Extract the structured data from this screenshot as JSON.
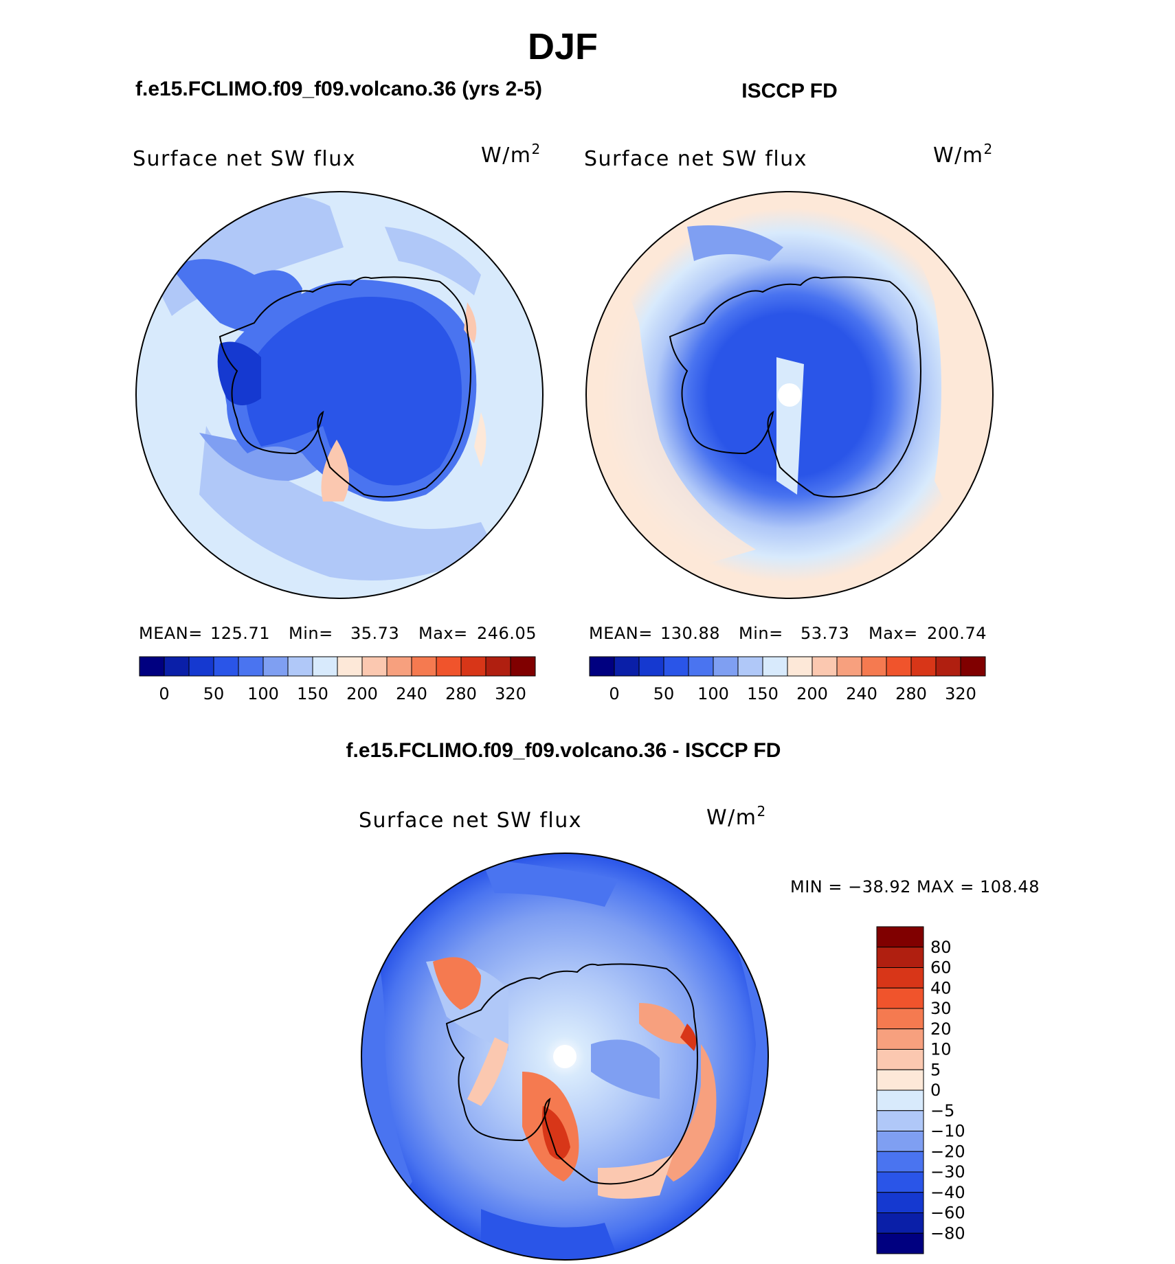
{
  "figure": {
    "title": "DJF"
  },
  "chart_data": [
    {
      "type": "heatmap",
      "projection": "south-polar-stereographic",
      "header": "f.e15.FCLIMO.f09_f09.volcano.36 (yrs 2-5)",
      "title": "Surface net SW flux",
      "units": "W/m",
      "units_sup": "2",
      "stats": {
        "mean_label": "MEAN=",
        "mean": "125.71",
        "min_label": "Min=",
        "min": "35.73",
        "max_label": "Max=",
        "max": "246.05"
      },
      "colorbar": {
        "orientation": "horizontal",
        "colors": [
          "#000080",
          "#0a1fa8",
          "#1539d0",
          "#2a55e8",
          "#4a74f0",
          "#7f9ff2",
          "#b0c8f8",
          "#d8eafc",
          "#fde8d8",
          "#fbc8b0",
          "#f7a07e",
          "#f57a50",
          "#f0542c",
          "#d83618",
          "#b01f10",
          "#800000"
        ],
        "tick_labels": [
          "0",
          "50",
          "100",
          "150",
          "200",
          "240",
          "280",
          "320"
        ]
      }
    },
    {
      "type": "heatmap",
      "projection": "south-polar-stereographic",
      "header": "ISCCP FD",
      "title": "Surface net SW flux",
      "units": "W/m",
      "units_sup": "2",
      "stats": {
        "mean_label": "MEAN=",
        "mean": "130.88",
        "min_label": "Min=",
        "min": "53.73",
        "max_label": "Max=",
        "max": "200.74"
      },
      "colorbar": {
        "orientation": "horizontal",
        "colors": [
          "#000080",
          "#0a1fa8",
          "#1539d0",
          "#2a55e8",
          "#4a74f0",
          "#7f9ff2",
          "#b0c8f8",
          "#d8eafc",
          "#fde8d8",
          "#fbc8b0",
          "#f7a07e",
          "#f57a50",
          "#f0542c",
          "#d83618",
          "#b01f10",
          "#800000"
        ],
        "tick_labels": [
          "0",
          "50",
          "100",
          "150",
          "200",
          "240",
          "280",
          "320"
        ]
      }
    },
    {
      "type": "heatmap",
      "projection": "south-polar-stereographic",
      "header": "f.e15.FCLIMO.f09_f09.volcano.36 - ISCCP FD",
      "title": "Surface net SW flux",
      "units": "W/m",
      "units_sup": "2",
      "stats_text": "MIN = −38.92 MAX = 108.48",
      "colorbar": {
        "orientation": "vertical",
        "colors_top_to_bottom": [
          "#800000",
          "#b01f10",
          "#d83618",
          "#f0542c",
          "#f57a50",
          "#f7a07e",
          "#fbc8b0",
          "#fde8d8",
          "#d8eafc",
          "#b0c8f8",
          "#7f9ff2",
          "#4a74f0",
          "#2a55e8",
          "#1539d0",
          "#0a1fa8",
          "#000080"
        ],
        "tick_labels_top_to_bottom": [
          "80",
          "60",
          "40",
          "30",
          "20",
          "10",
          "5",
          "0",
          "−5",
          "−10",
          "−20",
          "−30",
          "−40",
          "−60",
          "−80"
        ]
      }
    }
  ]
}
